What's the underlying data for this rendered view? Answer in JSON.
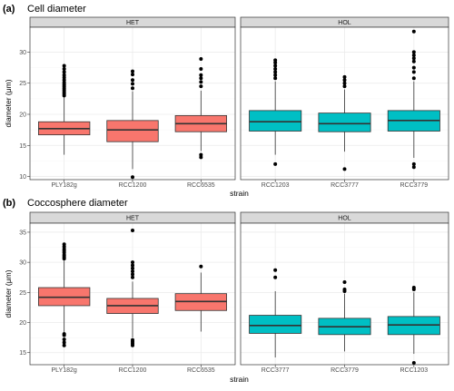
{
  "chart_data": [
    {
      "type": "boxplot",
      "tag": "(a)",
      "title": "Cell diameter",
      "xlabel": "strain",
      "ylabel": "diameter (μm)",
      "ylim": [
        9.5,
        34
      ],
      "yticks": [
        10,
        15,
        20,
        25,
        30
      ],
      "facets": [
        {
          "label": "HET",
          "color": "#F8766D",
          "boxes": [
            {
              "category": "PLY182g",
              "whisker_low": 13.5,
              "q1": 16.7,
              "median": 17.7,
              "q3": 18.8,
              "whisker_high": 22.8,
              "outliers": [
                23.0,
                23.3,
                23.6,
                23.9,
                24.2,
                24.5,
                24.8,
                25.1,
                25.5,
                25.9,
                26.3,
                26.8,
                27.3,
                27.8
              ]
            },
            {
              "category": "RCC1200",
              "whisker_low": 11.2,
              "q1": 15.6,
              "median": 17.5,
              "q3": 19.0,
              "whisker_high": 23.7,
              "outliers": [
                9.9,
                24.2,
                24.9,
                25.5,
                26.4,
                26.9
              ]
            },
            {
              "category": "RCC6535",
              "whisker_low": 14.1,
              "q1": 17.2,
              "median": 18.5,
              "q3": 19.8,
              "whisker_high": 23.8,
              "outliers": [
                13.1,
                13.5,
                24.5,
                25.2,
                25.8,
                26.3,
                27.3,
                28.9
              ]
            }
          ]
        },
        {
          "label": "HOL",
          "color": "#00BFC4",
          "boxes": [
            {
              "category": "RCC1203",
              "whisker_low": 13.5,
              "q1": 17.3,
              "median": 18.8,
              "q3": 20.6,
              "whisker_high": 25.3,
              "outliers": [
                12.0,
                25.8,
                26.3,
                26.8,
                27.3,
                27.8,
                28.3,
                28.7
              ]
            },
            {
              "category": "RCC3777",
              "whisker_low": 14.0,
              "q1": 17.2,
              "median": 18.5,
              "q3": 20.2,
              "whisker_high": 24.0,
              "outliers": [
                11.2,
                24.5,
                25.0,
                25.5,
                26.0
              ]
            },
            {
              "category": "RCC3779",
              "whisker_low": 13.0,
              "q1": 17.3,
              "median": 19.0,
              "q3": 20.6,
              "whisker_high": 25.3,
              "outliers": [
                11.5,
                12.0,
                25.8,
                26.8,
                27.5,
                28.5,
                29.0,
                29.5,
                30.0,
                33.3
              ]
            }
          ]
        }
      ]
    },
    {
      "type": "boxplot",
      "tag": "(b)",
      "title": "Coccosphere diameter",
      "xlabel": "strain",
      "ylabel": "diameter (μm)",
      "ylim": [
        13,
        36.5
      ],
      "yticks": [
        15,
        20,
        25,
        30,
        35
      ],
      "facets": [
        {
          "label": "HET",
          "color": "#F8766D",
          "boxes": [
            {
              "category": "PLY182g",
              "whisker_low": 18.3,
              "q1": 22.8,
              "median": 24.2,
              "q3": 25.8,
              "whisker_high": 30.3,
              "outliers": [
                16.2,
                16.7,
                17.2,
                17.9,
                18.1,
                30.6,
                30.9,
                31.2,
                31.6,
                31.9,
                32.2,
                32.6,
                33.0
              ]
            },
            {
              "category": "RCC1200",
              "whisker_low": 17.5,
              "q1": 21.5,
              "median": 22.8,
              "q3": 24.0,
              "whisker_high": 26.8,
              "outliers": [
                16.2,
                16.5,
                16.8,
                17.1,
                27.5,
                28.0,
                28.5,
                29.0,
                29.5,
                30.0,
                35.3
              ]
            },
            {
              "category": "RCC6535",
              "whisker_low": 18.5,
              "q1": 22.0,
              "median": 23.5,
              "q3": 24.8,
              "whisker_high": 28.3,
              "outliers": [
                29.3
              ]
            }
          ]
        },
        {
          "label": "HOL",
          "color": "#00BFC4",
          "boxes": [
            {
              "category": "RCC3777",
              "whisker_low": 14.2,
              "q1": 18.2,
              "median": 19.5,
              "q3": 21.2,
              "whisker_high": 25.2,
              "outliers": [
                27.5,
                28.7
              ]
            },
            {
              "category": "RCC3779",
              "whisker_low": 15.2,
              "q1": 18.0,
              "median": 19.3,
              "q3": 20.7,
              "whisker_high": 24.8,
              "outliers": [
                25.2,
                25.5,
                26.7
              ]
            },
            {
              "category": "RCC1203",
              "whisker_low": 14.8,
              "q1": 18.0,
              "median": 19.6,
              "q3": 21.0,
              "whisker_high": 25.0,
              "outliers": [
                13.3,
                25.5,
                25.8
              ]
            }
          ]
        }
      ]
    }
  ]
}
